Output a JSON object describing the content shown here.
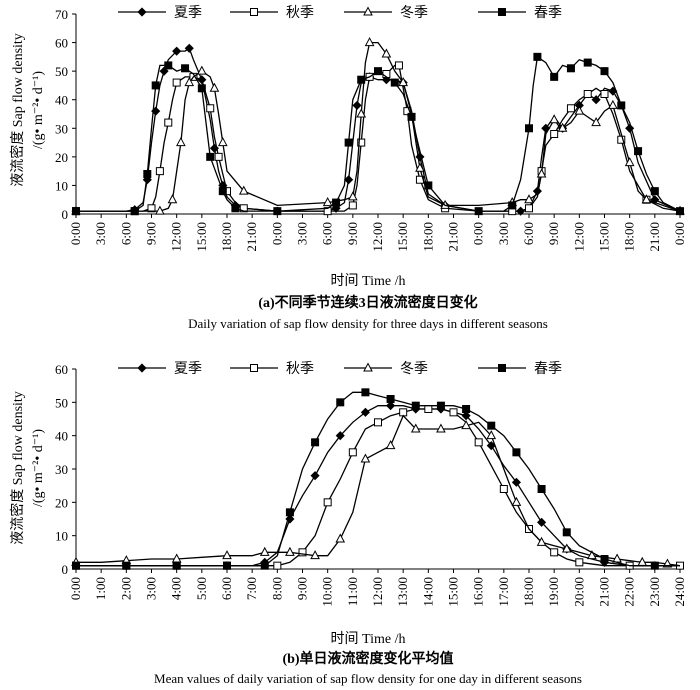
{
  "chart_data": [
    {
      "type": "line",
      "panel": "a",
      "title": "(a)不同季节连续3日液流密度日变化",
      "subtitle": "Daily variation of sap flow density for three days in different seasons",
      "xlabel": "时间 Time /h",
      "ylabel_cn": "液流密度 Sap flow density",
      "ylabel_unit": "/(g• m⁻²• d⁻¹)",
      "xlim": [
        0,
        72
      ],
      "ylim": [
        0,
        70
      ],
      "yticks": [
        0,
        10,
        20,
        30,
        40,
        50,
        60,
        70
      ],
      "xtick_labels": [
        "0:00",
        "3:00",
        "6:00",
        "9:00",
        "12:00",
        "15:00",
        "18:00",
        "21:00",
        "0:00",
        "3:00",
        "6:00",
        "9:00",
        "12:00",
        "15:00",
        "18:00",
        "21:00",
        "0:00",
        "3:00",
        "6:00",
        "9:00",
        "12:00",
        "15:00",
        "18:00",
        "21:00",
        "0:00"
      ],
      "legend": "top",
      "series": [
        {
          "name": "夏季",
          "marker": "diamond",
          "x": [
            0,
            6,
            7,
            8,
            8.5,
            9,
            9.5,
            10,
            10.5,
            11,
            12,
            13,
            13.5,
            14,
            15,
            16,
            16.5,
            17,
            17.5,
            18,
            19,
            20,
            24,
            30,
            31,
            32,
            32.5,
            33,
            33.5,
            34,
            35,
            36,
            37,
            38,
            39,
            40,
            41,
            42,
            44,
            48,
            53,
            54,
            55,
            55.5,
            56,
            57,
            58,
            59,
            60,
            61,
            62,
            63,
            64,
            65,
            66,
            67,
            69,
            72
          ],
          "y": [
            1,
            1,
            1.5,
            4,
            12,
            25,
            36,
            45,
            50,
            54,
            57,
            57,
            58,
            54,
            47,
            33,
            23,
            15,
            10,
            6,
            3,
            2,
            1,
            1,
            2,
            4,
            12,
            25,
            38,
            46,
            48,
            47,
            47,
            47,
            46,
            36,
            20,
            7,
            3,
            1,
            1,
            2,
            8,
            20,
            30,
            34,
            30,
            34,
            38,
            42,
            40,
            44,
            43,
            38,
            30,
            18,
            5,
            1
          ]
        },
        {
          "name": "秋季",
          "marker": "square",
          "x": [
            0,
            6,
            7,
            8,
            9,
            9.5,
            10,
            10.5,
            11,
            11.5,
            12,
            13,
            14,
            15,
            16,
            16.5,
            17,
            17.5,
            18,
            19,
            20,
            24,
            30,
            32,
            33,
            33.5,
            34,
            34.5,
            35,
            36,
            37,
            38,
            38.5,
            39,
            39.5,
            40,
            41,
            42,
            44,
            48,
            52,
            53,
            54,
            55,
            55.5,
            56,
            57,
            58,
            59,
            60,
            61,
            62,
            63,
            64,
            65,
            66,
            68,
            72
          ],
          "y": [
            1,
            1,
            1,
            1,
            2,
            6,
            15,
            25,
            32,
            40,
            46,
            48,
            48,
            47,
            37,
            27,
            20,
            14,
            8,
            4,
            2,
            1,
            1,
            1,
            3,
            10,
            25,
            40,
            48,
            50,
            49,
            52,
            52,
            44,
            36,
            24,
            12,
            5,
            2,
            1,
            1,
            1,
            2,
            6,
            15,
            24,
            28,
            33,
            37,
            40,
            42,
            44,
            42,
            35,
            26,
            15,
            5,
            1
          ]
        },
        {
          "name": "冬季",
          "marker": "triangle",
          "x": [
            0,
            8,
            10,
            11,
            11.5,
            12,
            12.5,
            13,
            13.5,
            14,
            15,
            16,
            16.5,
            17,
            17.5,
            18,
            20,
            24,
            30,
            32,
            33,
            33.5,
            34,
            34.5,
            35,
            36,
            37,
            38,
            39,
            40,
            41,
            42,
            44,
            48,
            52,
            53,
            54,
            55,
            55.5,
            56,
            57,
            57.5,
            58,
            59,
            60,
            61,
            62,
            63,
            64,
            65,
            66,
            67,
            68,
            70,
            72
          ],
          "y": [
            1,
            1,
            1,
            2,
            5,
            15,
            25,
            40,
            46,
            48,
            50,
            48,
            44,
            35,
            25,
            15,
            8,
            3,
            4,
            5,
            6,
            15,
            35,
            53,
            60,
            60,
            56,
            50,
            46,
            35,
            16,
            6,
            3,
            3,
            4,
            5,
            5,
            7,
            14,
            28,
            33,
            31,
            30,
            32,
            36,
            34,
            32,
            36,
            38,
            28,
            18,
            8,
            5,
            2,
            1
          ]
        },
        {
          "name": "春季",
          "marker": "square-filled",
          "x": [
            0,
            6,
            7,
            8,
            8.5,
            9,
            9.5,
            10,
            11,
            12,
            13,
            14,
            15,
            15.5,
            16,
            17,
            17.5,
            18,
            19,
            20,
            24,
            30,
            31,
            32,
            32.5,
            33,
            34,
            35,
            36,
            37,
            38,
            39,
            40,
            41,
            42,
            44,
            48,
            51,
            52,
            53,
            54,
            54.5,
            55,
            56,
            57,
            58,
            59,
            60,
            61,
            62,
            63,
            64,
            65,
            66,
            67,
            68,
            69,
            70,
            72
          ],
          "y": [
            1,
            1,
            1,
            3,
            14,
            30,
            45,
            52,
            52,
            50,
            51,
            49,
            44,
            32,
            20,
            12,
            8,
            5,
            2,
            1,
            1,
            2,
            4,
            10,
            25,
            40,
            47,
            48,
            50,
            48,
            46,
            42,
            34,
            22,
            10,
            3,
            1,
            1,
            3,
            12,
            30,
            45,
            55,
            53,
            48,
            52,
            51,
            54,
            53,
            52,
            50,
            46,
            38,
            32,
            22,
            14,
            8,
            4,
            1
          ]
        }
      ]
    },
    {
      "type": "line",
      "panel": "b",
      "title": "(b)单日液流密度变化平均值",
      "subtitle": "Mean values of daily variation of sap flow density for one day in different seasons",
      "xlabel": "时间 Time /h",
      "ylabel_cn": "液流密度 Sap flow density",
      "ylabel_unit": "/(g• m⁻²• d⁻¹)",
      "xlim": [
        0,
        24
      ],
      "ylim": [
        0,
        60
      ],
      "yticks": [
        0,
        10,
        20,
        30,
        40,
        50,
        60
      ],
      "xtick_labels": [
        "0:00",
        "1:00",
        "2:00",
        "3:00",
        "4:00",
        "5:00",
        "6:00",
        "7:00",
        "8:00",
        "9:00",
        "10:00",
        "11:00",
        "12:00",
        "13:00",
        "14:00",
        "15:00",
        "16:00",
        "17:00",
        "18:00",
        "19:00",
        "20:00",
        "21:00",
        "22:00",
        "23:00",
        "24:00"
      ],
      "legend": "top",
      "series": [
        {
          "name": "夏季",
          "marker": "diamond",
          "x": [
            0,
            1,
            2,
            3,
            4,
            5,
            6,
            7,
            7.5,
            8,
            8.5,
            9,
            9.5,
            10,
            10.5,
            11,
            11.5,
            12,
            12.5,
            13,
            13.5,
            14,
            14.5,
            15,
            15.5,
            16,
            16.5,
            17,
            17.5,
            18,
            18.5,
            19,
            19.5,
            20,
            21,
            22,
            23,
            24
          ],
          "y": [
            1,
            1,
            1,
            1,
            1,
            1,
            1,
            1,
            2,
            5,
            15,
            22,
            28,
            35,
            40,
            44,
            47,
            49,
            49,
            49,
            48,
            48,
            48,
            47,
            46,
            42,
            37,
            31,
            26,
            20,
            14,
            10,
            6,
            4,
            2,
            1,
            1,
            1
          ]
        },
        {
          "name": "秋季",
          "marker": "square",
          "x": [
            0,
            1,
            2,
            3,
            4,
            5,
            6,
            7,
            8,
            8.5,
            9,
            9.5,
            10,
            10.5,
            11,
            11.5,
            12,
            12.5,
            13,
            13.5,
            14,
            14.5,
            15,
            15.5,
            16,
            16.5,
            17,
            17.5,
            18,
            18.5,
            19,
            19.5,
            20,
            21,
            22,
            23,
            24
          ],
          "y": [
            1,
            1,
            1,
            1,
            1,
            1,
            1,
            1,
            1,
            2,
            5,
            10,
            20,
            27,
            35,
            42,
            44,
            46,
            47,
            48,
            48,
            48,
            47,
            44,
            38,
            31,
            24,
            17,
            12,
            8,
            5,
            3,
            2,
            1,
            1,
            1,
            1
          ]
        },
        {
          "name": "冬季",
          "marker": "triangle",
          "x": [
            0,
            1,
            2,
            3,
            4,
            5,
            6,
            7,
            7.5,
            8,
            8.5,
            9,
            9.5,
            10,
            10.5,
            11,
            11.5,
            12,
            12.5,
            13,
            13.5,
            14,
            14.5,
            15,
            15.5,
            16,
            16.5,
            17,
            17.5,
            18,
            18.5,
            19,
            19.5,
            20,
            20.5,
            21,
            21.5,
            22,
            22.5,
            23,
            23.5,
            24
          ],
          "y": [
            2,
            2,
            2.5,
            3,
            3,
            3.5,
            4,
            4,
            5,
            5,
            5,
            4.5,
            4,
            4,
            9,
            17,
            33,
            35,
            37,
            46,
            42,
            42,
            42,
            42,
            43,
            44,
            40,
            30,
            20,
            12,
            8,
            7,
            6,
            5,
            4,
            3.5,
            3,
            2.5,
            2,
            2,
            1.5,
            1
          ]
        },
        {
          "name": "春季",
          "marker": "square-filled",
          "x": [
            0,
            1,
            2,
            3,
            4,
            5,
            6,
            7,
            7.5,
            8,
            8.5,
            9,
            9.5,
            10,
            10.5,
            11,
            11.5,
            12,
            12.5,
            13,
            13.5,
            14,
            14.5,
            15,
            15.5,
            16,
            16.5,
            17,
            17.5,
            18,
            18.5,
            19,
            19.5,
            20,
            21,
            22,
            23,
            24
          ],
          "y": [
            1,
            1,
            1,
            1,
            1,
            1,
            1,
            1,
            1,
            4,
            17,
            30,
            38,
            45,
            50,
            53,
            53,
            52,
            51,
            50,
            49,
            49,
            49,
            49,
            48,
            46,
            43,
            40,
            35,
            30,
            24,
            18,
            11,
            7,
            3,
            1,
            1,
            1
          ]
        }
      ]
    }
  ]
}
